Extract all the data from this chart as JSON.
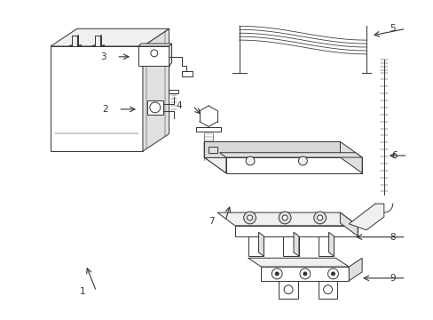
{
  "background_color": "#ffffff",
  "line_color": "#333333",
  "figure_width": 4.89,
  "figure_height": 3.6,
  "dpi": 100,
  "lw": 0.7
}
